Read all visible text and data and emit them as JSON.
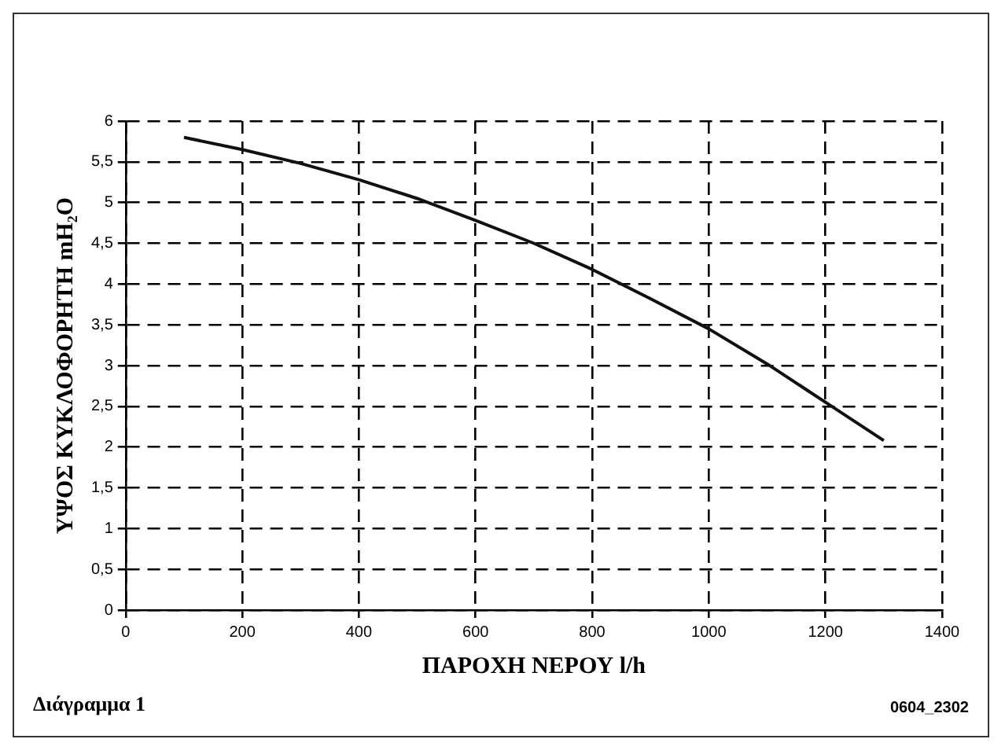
{
  "chart_data": {
    "type": "line",
    "xlabel": "ΠΑΡΟΧΗ ΝΕΡΟΥ l/h",
    "ylabel": "ΥΨΟΣ ΚΥΚΛΟΦΟΡΗΤΗ mH₂O",
    "x": [
      100,
      200,
      300,
      400,
      500,
      600,
      700,
      800,
      900,
      1000,
      1100,
      1200,
      1300
    ],
    "series": [
      {
        "color": "#111111",
        "values": [
          5.8,
          5.65,
          5.48,
          5.28,
          5.05,
          4.78,
          4.5,
          4.18,
          3.82,
          3.45,
          3.02,
          2.55,
          2.08
        ]
      }
    ],
    "xlim": [
      0,
      1400
    ],
    "xticks": [
      0,
      200,
      400,
      600,
      800,
      1000,
      1200,
      1400
    ],
    "ylim": [
      0,
      6
    ],
    "yticks": [
      0,
      {
        "value": 0.5,
        "label": "0,5"
      },
      1,
      {
        "value": 1.5,
        "label": "1,5"
      },
      2,
      {
        "value": 2.5,
        "label": "2,5"
      },
      3,
      {
        "value": 3.5,
        "label": "3,5"
      },
      4,
      {
        "value": 4.5,
        "label": "4,5"
      },
      5,
      {
        "value": 5.5,
        "label": "5,5"
      },
      6
    ],
    "grid": true,
    "legend": false,
    "marker": "none",
    "line_style": "solid",
    "annotations": [
      "Διάγραμμα 1",
      "0604_2302"
    ]
  }
}
